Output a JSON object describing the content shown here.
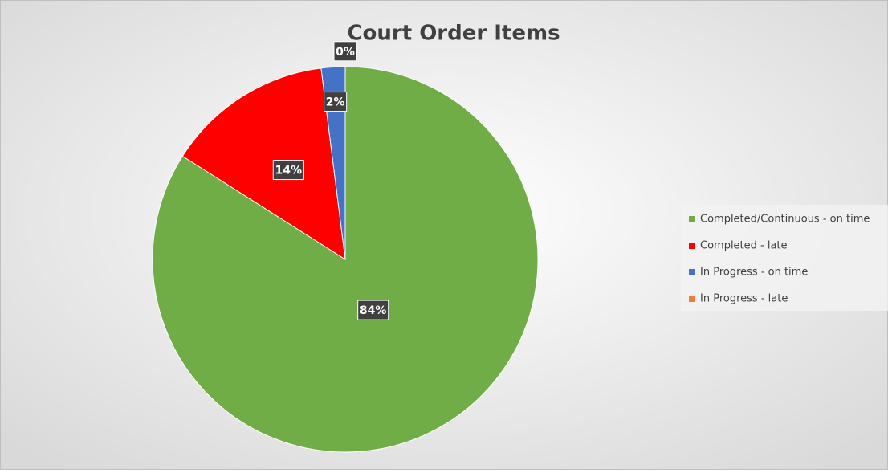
{
  "chart_data": {
    "type": "pie",
    "title": "Court Order Items",
    "categories": [
      "Completed/Continuous - on time",
      "Completed - late",
      "In Progress - on time",
      "In Progress - late"
    ],
    "values": [
      84,
      14,
      2,
      0
    ],
    "value_labels": [
      "84%",
      "14%",
      "2%",
      "0%"
    ],
    "colors": [
      "#70ad47",
      "#ff0000",
      "#4472c4",
      "#ed7d31"
    ],
    "legend": "right"
  }
}
